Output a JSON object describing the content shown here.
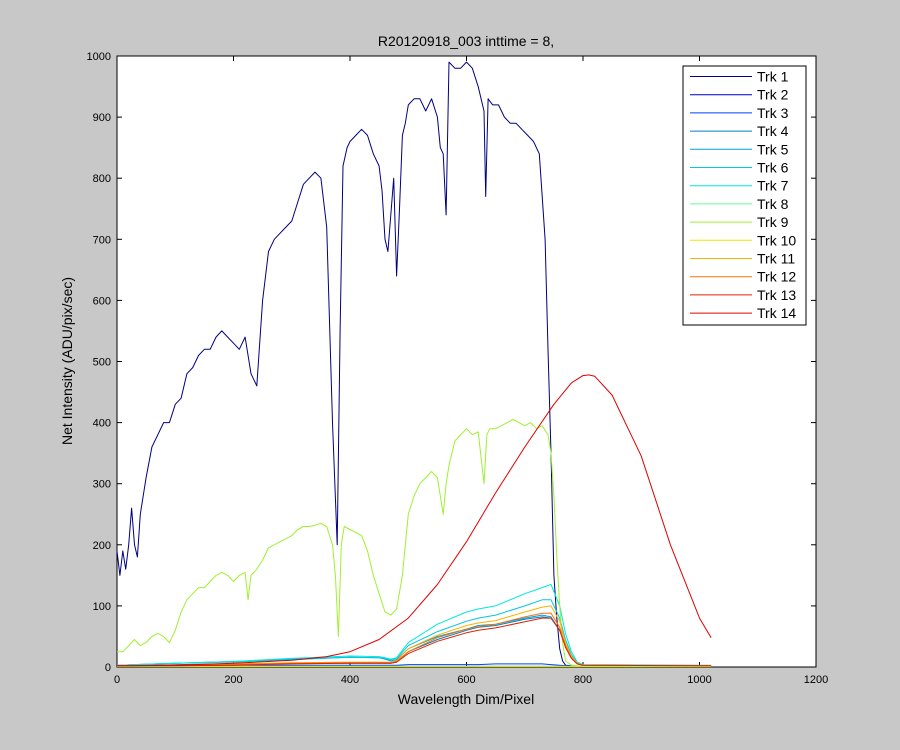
{
  "chart_data": {
    "type": "line",
    "title": "R20120918_003 inttime = 8,",
    "xlabel": "Wavelength Dim/Pixel",
    "ylabel": "Net Intensity (ADU/pix/sec)",
    "xlim": [
      0,
      1200
    ],
    "ylim": [
      0,
      1000
    ],
    "xticks": [
      0,
      200,
      400,
      600,
      800,
      1000,
      1200
    ],
    "yticks": [
      0,
      100,
      200,
      300,
      400,
      500,
      600,
      700,
      800,
      900,
      1000
    ],
    "grid": false,
    "legend_position": "top-right",
    "series": [
      {
        "name": "Trk 1",
        "color": "#000080",
        "x": [
          0,
          5,
          10,
          15,
          20,
          25,
          30,
          35,
          40,
          50,
          60,
          70,
          80,
          90,
          100,
          110,
          120,
          130,
          140,
          150,
          160,
          170,
          180,
          190,
          200,
          210,
          220,
          230,
          240,
          250,
          260,
          270,
          280,
          290,
          300,
          310,
          320,
          330,
          340,
          350,
          360,
          370,
          378,
          383,
          388,
          395,
          400,
          410,
          420,
          430,
          440,
          450,
          455,
          460,
          465,
          470,
          475,
          480,
          485,
          490,
          495,
          500,
          510,
          520,
          530,
          540,
          550,
          555,
          560,
          565,
          570,
          580,
          590,
          600,
          610,
          620,
          630,
          633,
          637,
          645,
          655,
          665,
          675,
          685,
          695,
          705,
          715,
          725,
          735,
          740,
          745,
          750,
          755,
          760,
          765,
          770,
          780,
          800,
          850,
          900,
          1000,
          1020
        ],
        "y": [
          190,
          150,
          190,
          160,
          200,
          260,
          200,
          180,
          250,
          310,
          360,
          380,
          400,
          400,
          430,
          440,
          480,
          490,
          510,
          520,
          520,
          540,
          550,
          540,
          530,
          520,
          540,
          480,
          460,
          600,
          680,
          700,
          710,
          720,
          730,
          760,
          790,
          800,
          810,
          800,
          720,
          400,
          200,
          550,
          820,
          850,
          860,
          870,
          880,
          870,
          840,
          820,
          780,
          700,
          680,
          740,
          800,
          640,
          750,
          870,
          890,
          920,
          930,
          930,
          910,
          930,
          900,
          850,
          840,
          740,
          990,
          980,
          980,
          990,
          980,
          950,
          910,
          770,
          930,
          920,
          920,
          900,
          890,
          890,
          880,
          870,
          860,
          840,
          700,
          520,
          350,
          150,
          80,
          30,
          10,
          3,
          2,
          1,
          1,
          1,
          1,
          1
        ]
      },
      {
        "name": "Trk 2",
        "color": "#0000c0",
        "x": [
          0,
          100,
          200,
          300,
          400,
          450,
          460,
          470,
          480,
          500,
          550,
          600,
          620,
          650,
          700,
          730,
          745,
          760,
          770,
          780,
          790,
          800,
          1020
        ],
        "y": [
          1,
          1,
          1,
          1,
          1,
          1,
          1,
          1,
          1,
          1,
          1,
          1,
          1,
          1,
          1,
          1,
          1,
          1,
          1,
          1,
          1,
          1,
          1
        ]
      },
      {
        "name": "Trk 3",
        "color": "#0040ff",
        "x": [
          0,
          100,
          200,
          300,
          400,
          450,
          460,
          470,
          480,
          500,
          550,
          600,
          620,
          650,
          700,
          730,
          745,
          760,
          770,
          780,
          790,
          800,
          1020
        ],
        "y": [
          2,
          2,
          3,
          3,
          3,
          3,
          3,
          3,
          3,
          4,
          4,
          4,
          4,
          5,
          5,
          5,
          4,
          3,
          2,
          2,
          1,
          1,
          1
        ]
      },
      {
        "name": "Trk 4",
        "color": "#0080c0",
        "x": [
          0,
          100,
          200,
          300,
          400,
          450,
          460,
          470,
          480,
          500,
          550,
          600,
          620,
          650,
          700,
          730,
          745,
          760,
          770,
          780,
          790,
          800,
          1020
        ],
        "y": [
          2,
          4,
          5,
          6,
          6,
          6,
          6,
          6,
          8,
          25,
          45,
          60,
          65,
          68,
          78,
          82,
          80,
          60,
          35,
          15,
          5,
          3,
          2
        ]
      },
      {
        "name": "Trk 5",
        "color": "#00a0e0",
        "x": [
          0,
          100,
          200,
          300,
          400,
          450,
          460,
          470,
          480,
          500,
          550,
          600,
          620,
          650,
          700,
          730,
          745,
          760,
          770,
          780,
          790,
          800,
          1020
        ],
        "y": [
          3,
          6,
          9,
          13,
          16,
          15,
          13,
          10,
          12,
          30,
          50,
          62,
          68,
          70,
          80,
          85,
          82,
          60,
          35,
          15,
          5,
          3,
          2
        ]
      },
      {
        "name": "Trk 6",
        "color": "#00c8e0",
        "x": [
          0,
          100,
          200,
          300,
          400,
          450,
          460,
          470,
          480,
          500,
          550,
          600,
          620,
          650,
          700,
          730,
          745,
          760,
          770,
          780,
          790,
          800,
          1020
        ],
        "y": [
          3,
          6,
          8,
          12,
          16,
          15,
          14,
          12,
          14,
          35,
          58,
          75,
          80,
          85,
          100,
          110,
          110,
          80,
          45,
          20,
          7,
          3,
          2
        ]
      },
      {
        "name": "Trk 7",
        "color": "#00e8e0",
        "x": [
          0,
          100,
          200,
          300,
          400,
          450,
          460,
          470,
          480,
          500,
          550,
          600,
          620,
          650,
          700,
          730,
          745,
          760,
          770,
          780,
          790,
          800,
          1020
        ],
        "y": [
          3,
          6,
          9,
          14,
          18,
          17,
          15,
          13,
          15,
          40,
          70,
          90,
          95,
          100,
          120,
          130,
          135,
          100,
          55,
          25,
          8,
          4,
          3
        ]
      },
      {
        "name": "Trk 8",
        "color": "#60ff90",
        "x": [
          0,
          100,
          200,
          300,
          400,
          450,
          460,
          470,
          480,
          500,
          550,
          600,
          620,
          650,
          700,
          730,
          745,
          760,
          770,
          780,
          790,
          800,
          1020
        ],
        "y": [
          1,
          1,
          1,
          1,
          1,
          1,
          1,
          1,
          1,
          1,
          1,
          1,
          1,
          1,
          1,
          1,
          1,
          1,
          1,
          1,
          1,
          1,
          1
        ]
      },
      {
        "name": "Trk 9",
        "color": "#a0f030",
        "x": [
          0,
          10,
          20,
          30,
          40,
          50,
          60,
          70,
          80,
          90,
          100,
          110,
          120,
          130,
          140,
          150,
          160,
          170,
          180,
          190,
          200,
          210,
          220,
          225,
          230,
          240,
          250,
          260,
          270,
          280,
          290,
          300,
          310,
          320,
          330,
          340,
          350,
          360,
          370,
          375,
          380,
          385,
          390,
          400,
          410,
          420,
          430,
          440,
          450,
          460,
          470,
          480,
          490,
          500,
          510,
          520,
          530,
          540,
          550,
          560,
          565,
          570,
          580,
          590,
          600,
          610,
          620,
          630,
          635,
          640,
          650,
          660,
          670,
          680,
          690,
          700,
          710,
          720,
          730,
          740,
          745,
          750,
          755,
          760,
          765,
          770,
          780,
          800,
          850,
          900,
          1000,
          1020
        ],
        "y": [
          25,
          25,
          35,
          45,
          35,
          40,
          50,
          55,
          50,
          40,
          60,
          90,
          110,
          120,
          130,
          130,
          140,
          150,
          155,
          150,
          140,
          150,
          155,
          110,
          150,
          160,
          175,
          195,
          200,
          205,
          210,
          215,
          225,
          230,
          230,
          232,
          235,
          230,
          200,
          150,
          50,
          200,
          230,
          225,
          220,
          215,
          190,
          150,
          120,
          90,
          85,
          95,
          150,
          250,
          280,
          300,
          310,
          320,
          310,
          250,
          300,
          330,
          370,
          380,
          390,
          380,
          385,
          300,
          380,
          390,
          390,
          395,
          400,
          405,
          400,
          395,
          400,
          390,
          395,
          380,
          350,
          280,
          180,
          100,
          40,
          10,
          3,
          1,
          1,
          1,
          1,
          1
        ]
      },
      {
        "name": "Trk 10",
        "color": "#e8e800",
        "x": [
          0,
          100,
          200,
          300,
          400,
          450,
          460,
          470,
          480,
          500,
          550,
          600,
          620,
          650,
          700,
          730,
          745,
          760,
          770,
          780,
          790,
          800,
          1020
        ],
        "y": [
          1,
          1,
          1,
          1,
          1,
          1,
          1,
          1,
          1,
          1,
          1,
          1,
          1,
          1,
          1,
          1,
          1,
          1,
          1,
          1,
          1,
          1,
          1
        ]
      },
      {
        "name": "Trk 11",
        "color": "#ffb000",
        "x": [
          0,
          100,
          200,
          300,
          400,
          450,
          460,
          470,
          480,
          500,
          550,
          600,
          620,
          650,
          700,
          730,
          745,
          760,
          770,
          780,
          790,
          800,
          1020
        ],
        "y": [
          2,
          3,
          5,
          7,
          8,
          8,
          8,
          8,
          10,
          30,
          52,
          68,
          72,
          76,
          90,
          98,
          100,
          75,
          40,
          18,
          6,
          3,
          2
        ]
      },
      {
        "name": "Trk 12",
        "color": "#ff7000",
        "x": [
          0,
          100,
          200,
          300,
          400,
          450,
          460,
          470,
          480,
          500,
          550,
          600,
          620,
          650,
          700,
          730,
          745,
          760,
          770,
          780,
          790,
          800,
          1020
        ],
        "y": [
          2,
          3,
          4,
          6,
          7,
          7,
          7,
          7,
          9,
          25,
          48,
          62,
          66,
          70,
          82,
          88,
          88,
          65,
          35,
          15,
          5,
          3,
          2
        ]
      },
      {
        "name": "Trk 13",
        "color": "#e02000",
        "x": [
          0,
          100,
          200,
          300,
          400,
          450,
          460,
          470,
          480,
          500,
          550,
          600,
          620,
          650,
          700,
          730,
          745,
          760,
          770,
          780,
          790,
          800,
          1020
        ],
        "y": [
          2,
          2,
          3,
          5,
          6,
          6,
          6,
          6,
          8,
          22,
          42,
          56,
          60,
          64,
          74,
          80,
          80,
          60,
          32,
          14,
          5,
          3,
          2
        ]
      },
      {
        "name": "Trk 14",
        "color": "#e00000",
        "x": [
          0,
          100,
          200,
          300,
          360,
          400,
          450,
          500,
          550,
          600,
          650,
          700,
          750,
          780,
          800,
          810,
          820,
          850,
          900,
          950,
          1000,
          1020
        ],
        "y": [
          2,
          3,
          6,
          11,
          17,
          25,
          45,
          80,
          135,
          205,
          285,
          360,
          430,
          465,
          477,
          478,
          476,
          445,
          345,
          200,
          80,
          48
        ]
      }
    ]
  }
}
